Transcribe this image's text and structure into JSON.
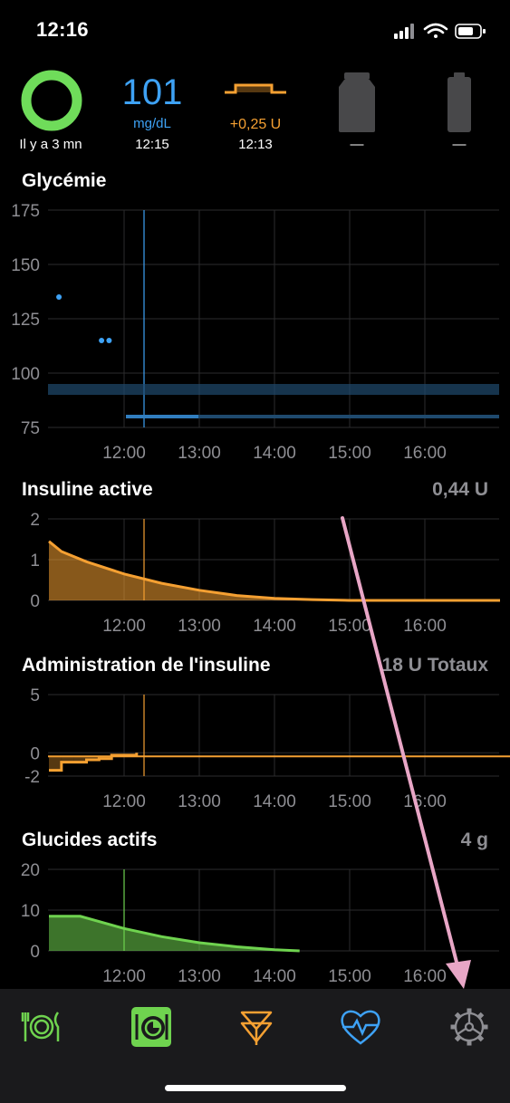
{
  "status_bar": {
    "time": "12:16"
  },
  "hud": {
    "loop_status": "Il y a 3 mn",
    "glucose_value": "101",
    "glucose_unit": "mg/dL",
    "glucose_time": "12:15",
    "basal_rate": "+0,25 U",
    "basal_time": "12:13",
    "reservoir_value": "—",
    "battery_value": "—"
  },
  "colors": {
    "glucose": "#3ea2f5",
    "insulin": "#f5a032",
    "carbs": "#6fd34f",
    "loop_ring": "#6fdc5a",
    "annotation_arrow": "#e8a6c6"
  },
  "charts": {
    "glucose": {
      "title": "Glycémie",
      "y_ticks": [
        "175",
        "150",
        "125",
        "100",
        "75"
      ]
    },
    "iob": {
      "title": "Insuline active",
      "total": "0,44 U",
      "y_ticks": [
        "2",
        "1",
        "0"
      ]
    },
    "dose": {
      "title": "Administration de l'insuline",
      "total": "18 U Totaux",
      "y_ticks": [
        "5",
        "0",
        "-2"
      ]
    },
    "cob": {
      "title": "Glucides actifs",
      "total": "4 g",
      "y_ticks": [
        "20",
        "10",
        "0"
      ]
    },
    "x_ticks": [
      "12:00",
      "13:00",
      "14:00",
      "15:00",
      "16:00"
    ]
  },
  "chart_data": [
    {
      "type": "scatter",
      "title": "Glycémie",
      "ylim": [
        75,
        175
      ],
      "x": [
        "11:08",
        "11:42",
        "11:48"
      ],
      "values": [
        135,
        115,
        115
      ],
      "target_range": [
        90,
        95
      ]
    },
    {
      "type": "area",
      "title": "Insuline active",
      "ylim": [
        0,
        2
      ],
      "x": [
        "11:00",
        "11:10",
        "11:30",
        "12:00",
        "12:30",
        "13:00",
        "13:30",
        "14:00",
        "14:30",
        "15:00",
        "16:00",
        "17:00"
      ],
      "values": [
        1.45,
        1.2,
        0.95,
        0.65,
        0.42,
        0.25,
        0.12,
        0.05,
        0.02,
        0,
        0,
        0
      ]
    },
    {
      "type": "line",
      "title": "Administration de l'insuline",
      "ylim": [
        -2,
        5
      ],
      "x": [
        "11:00",
        "11:10",
        "11:20",
        "11:30",
        "11:40",
        "11:50",
        "12:00",
        "12:10"
      ],
      "values": [
        -1.5,
        -0.8,
        -0.8,
        -0.6,
        -0.5,
        -0.2,
        -0.2,
        0
      ]
    },
    {
      "type": "area",
      "title": "Glucides actifs",
      "ylim": [
        0,
        20
      ],
      "x": [
        "11:00",
        "11:25",
        "12:00",
        "12:30",
        "13:00",
        "13:30",
        "14:00",
        "14:20"
      ],
      "values": [
        8.5,
        8.5,
        5.5,
        3.5,
        2.0,
        1.0,
        0.3,
        0
      ]
    }
  ],
  "tabs": [
    {
      "name": "carb-entry",
      "icon": "fork-plate-icon"
    },
    {
      "name": "pre-meal",
      "icon": "pre-meal-icon"
    },
    {
      "name": "bolus",
      "icon": "bolus-icon"
    },
    {
      "name": "workout",
      "icon": "heart-icon"
    },
    {
      "name": "settings",
      "icon": "gear-icon"
    }
  ]
}
